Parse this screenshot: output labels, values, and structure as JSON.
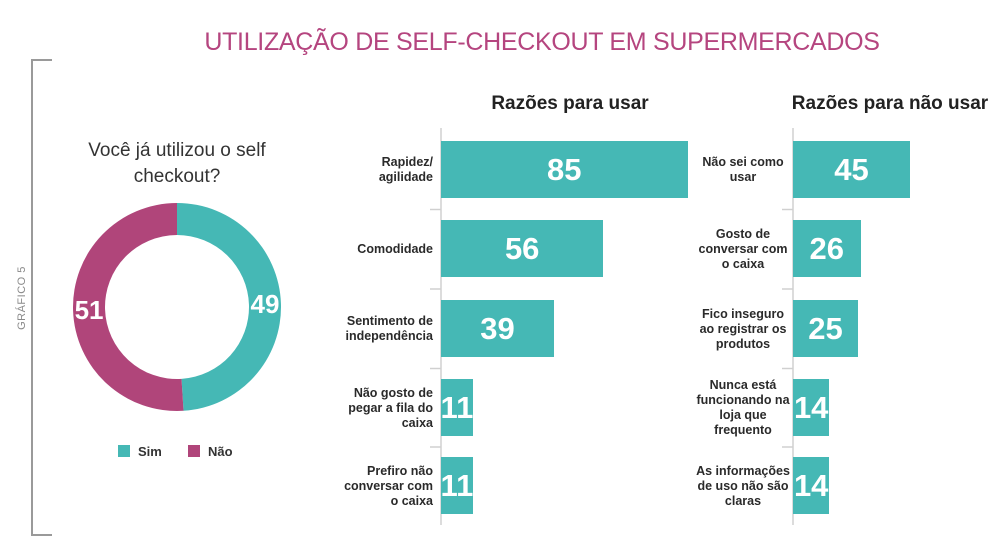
{
  "title": "UTILIZAÇÃO DE SELF-CHECKOUT EM SUPERMERCADOS",
  "side_label": "GRÁFICO 5",
  "chart_data": [
    {
      "type": "pie",
      "title": "Você já utilizou o self checkout?",
      "categories": [
        "Sim",
        "Não"
      ],
      "values": [
        49,
        51
      ],
      "colors": [
        "#45b8b5",
        "#b0457a"
      ],
      "legend": true
    },
    {
      "type": "bar",
      "orientation": "horizontal",
      "title": "Razões para usar",
      "categories": [
        "Rapidez/ agilidade",
        "Comodidade",
        "Sentimento de independência",
        "Não gosto de pegar a fila do caixa",
        "Prefiro não conversar com o caixa"
      ],
      "values": [
        85,
        56,
        39,
        11,
        11
      ],
      "color": "#45b8b5"
    },
    {
      "type": "bar",
      "orientation": "horizontal",
      "title": "Razões para não usar",
      "categories": [
        "Não sei como usar",
        "Gosto de conversar com o caixa",
        "Fico inseguro ao registrar os produtos",
        "Nunca está funcionando na loja que frequento",
        "As informações de uso não são claras"
      ],
      "values": [
        45,
        26,
        25,
        14,
        14
      ],
      "color": "#45b8b5"
    }
  ]
}
